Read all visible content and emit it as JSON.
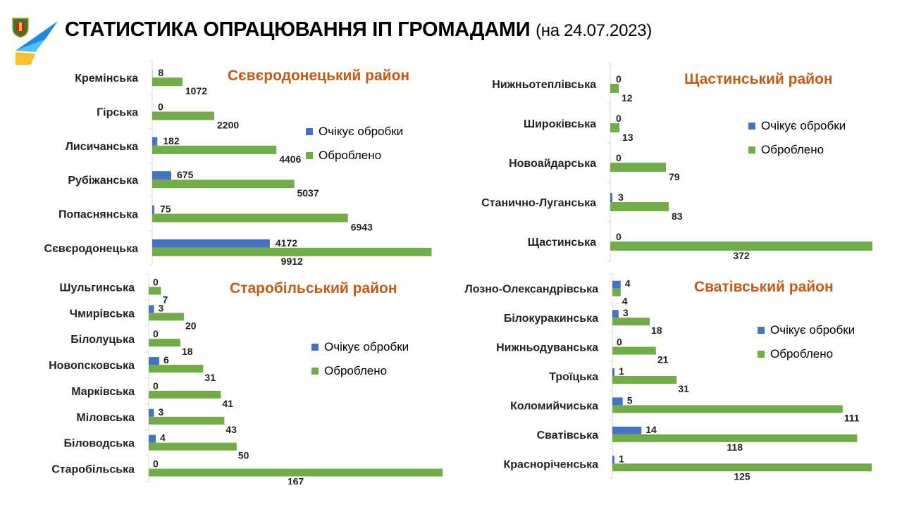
{
  "header": {
    "title": "СТАТИСТИКА ОПРАЦЮВАННЯ ІП ГРОМАДАМИ",
    "date": "(на 24.07.2023)"
  },
  "colors": {
    "pending": "#4472c4",
    "processed": "#70ad47",
    "panel_title": "#c55a11"
  },
  "chart_data": [
    {
      "type": "bar",
      "title": "Сєвєродонецький район",
      "orientation": "horizontal",
      "categories": [
        "Кремінська",
        "Гірська",
        "Лисичанська",
        "Рубіжанська",
        "Попаснянська",
        "Сєвєродонецька"
      ],
      "series": [
        {
          "name": "Очікує обробки",
          "values": [
            8,
            0,
            182,
            675,
            75,
            4172
          ]
        },
        {
          "name": "Оброблено",
          "values": [
            1072,
            2200,
            4406,
            5037,
            6943,
            9912
          ]
        }
      ],
      "legend": [
        "Очікує обробки",
        "Оброблено"
      ],
      "grid": false
    },
    {
      "type": "bar",
      "title": "Щастинський район",
      "orientation": "horizontal",
      "categories": [
        "Нижньотеплівська",
        "Широківська",
        "Новоайдарська",
        "Станично-Луганська",
        "Щастинська"
      ],
      "series": [
        {
          "name": "Очікує обробки",
          "values": [
            0,
            0,
            0,
            3,
            0
          ]
        },
        {
          "name": "Оброблено",
          "values": [
            12,
            13,
            79,
            83,
            372
          ]
        }
      ],
      "legend": [
        "Очікує обробки",
        "Оброблено"
      ],
      "grid": false
    },
    {
      "type": "bar",
      "title": "Старобільський район",
      "orientation": "horizontal",
      "categories": [
        "Шульгинська",
        "Чмирівська",
        "Білолуцька",
        "Новопсковська",
        "Марківська",
        "Міловська",
        "Біловодська",
        "Старобільська"
      ],
      "series": [
        {
          "name": "Очікує обробки",
          "values": [
            0,
            3,
            0,
            6,
            0,
            3,
            4,
            0
          ]
        },
        {
          "name": "Оброблено",
          "values": [
            7,
            20,
            18,
            31,
            41,
            43,
            50,
            167
          ]
        }
      ],
      "legend": [
        "Очікує обробки",
        "Оброблено"
      ],
      "grid": false
    },
    {
      "type": "bar",
      "title": "Сватівський район",
      "orientation": "horizontal",
      "categories": [
        "Лозно-Олександрівська",
        "Білокуракинська",
        "Нижньодуванська",
        "Троїцька",
        "Коломийчиська",
        "Сватівська",
        "Красноріченська"
      ],
      "series": [
        {
          "name": "Очікує обробки",
          "values": [
            4,
            3,
            0,
            1,
            5,
            14,
            1
          ]
        },
        {
          "name": "Оброблено",
          "values": [
            4,
            18,
            21,
            31,
            111,
            118,
            125
          ]
        }
      ],
      "legend": [
        "Очікує обробки",
        "Оброблено"
      ],
      "grid": false
    }
  ]
}
